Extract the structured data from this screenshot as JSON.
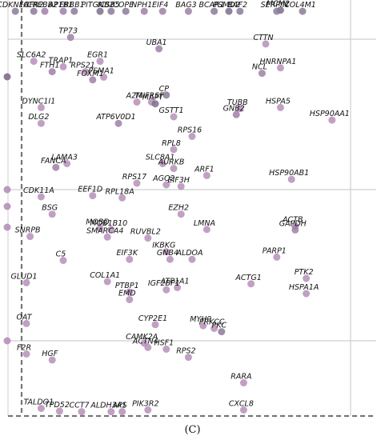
{
  "panel_label": "(C)",
  "chart_data": {
    "type": "scatter",
    "grid": true,
    "grid_color": "#cfcfcf",
    "dashed_line_color": "#777777",
    "point_colors": [
      "#7d6d8c",
      "#8c7a99",
      "#a07fa8",
      "#b68fba",
      "#c7a7c9",
      "#d7bbd6"
    ],
    "points": [
      {
        "label": "CDKN1A",
        "x": 0.02,
        "y": 0.994,
        "shade": 1
      },
      {
        "label": "FGFR2",
        "x": 0.07,
        "y": 0.994,
        "shade": 1
      },
      {
        "label": "AP1B1",
        "x": 0.15,
        "y": 0.994,
        "shade": 2
      },
      {
        "label": "CREBB2",
        "x": 0.1,
        "y": 0.994,
        "shade": 2
      },
      {
        "label": "ERBB1",
        "x": 0.18,
        "y": 0.994,
        "shade": 1
      },
      {
        "label": "PITGNB2",
        "x": 0.25,
        "y": 0.994,
        "shade": 0
      },
      {
        "label": "ICS65",
        "x": 0.28,
        "y": 0.994,
        "shade": 1
      },
      {
        "label": "COPE",
        "x": 0.32,
        "y": 0.994,
        "shade": 1
      },
      {
        "label": "NPH1",
        "x": 0.37,
        "y": 0.994,
        "shade": 2
      },
      {
        "label": "EIF4",
        "x": 0.42,
        "y": 0.994,
        "shade": 2
      },
      {
        "label": "BAG3",
        "x": 0.49,
        "y": 0.994,
        "shade": 2
      },
      {
        "label": "BCAR1",
        "x": 0.56,
        "y": 0.994,
        "shade": 1
      },
      {
        "label": "PSMD2",
        "x": 0.6,
        "y": 0.994,
        "shade": 0
      },
      {
        "label": "BAF2",
        "x": 0.63,
        "y": 0.994,
        "shade": 1
      },
      {
        "label": "MCM2",
        "x": 0.74,
        "y": 0.996,
        "shade": 0
      },
      {
        "label": "SERPIN",
        "x": 0.73,
        "y": 0.994,
        "shade": 1
      },
      {
        "label": "COL4M1",
        "x": 0.8,
        "y": 0.994,
        "shade": 1
      },
      {
        "label": "TP73",
        "x": 0.17,
        "y": 0.946,
        "shade": 2
      },
      {
        "label": "CTTN",
        "x": 0.7,
        "y": 0.934,
        "shade": 3
      },
      {
        "label": "UBA1",
        "x": 0.41,
        "y": 0.925,
        "shade": 2
      },
      {
        "label": "SLC6A2",
        "x": 0.07,
        "y": 0.902,
        "shade": 3
      },
      {
        "label": "EGR1",
        "x": 0.25,
        "y": 0.902,
        "shade": 3
      },
      {
        "label": "TRAP1",
        "x": 0.15,
        "y": 0.892,
        "shade": 3
      },
      {
        "label": "HNRNPA1",
        "x": 0.74,
        "y": 0.89,
        "shade": 3
      },
      {
        "label": "FTH1",
        "x": 0.12,
        "y": 0.883,
        "shade": 2
      },
      {
        "label": "RPS21",
        "x": 0.21,
        "y": 0.883,
        "shade": 3
      },
      {
        "label": "NCL",
        "x": 0.69,
        "y": 0.88,
        "shade": 2
      },
      {
        "label": "PSMA1",
        "x": 0.26,
        "y": 0.873,
        "shade": 3
      },
      {
        "label": "FOXM1",
        "x": 0.23,
        "y": 0.868,
        "shade": 2
      },
      {
        "label": "CP",
        "x": 0.43,
        "y": 0.84,
        "shade": 1
      },
      {
        "label": "A2M",
        "x": 0.35,
        "y": 0.827,
        "shade": 3
      },
      {
        "label": "TNFRSF",
        "x": 0.39,
        "y": 0.827,
        "shade": 3
      },
      {
        "label": "MAPT",
        "x": 0.4,
        "y": 0.824,
        "shade": 0
      },
      {
        "label": "DYNC1I1",
        "x": 0.09,
        "y": 0.817,
        "shade": 3
      },
      {
        "label": "TUBB",
        "x": 0.63,
        "y": 0.815,
        "shade": 3
      },
      {
        "label": "HSPA5",
        "x": 0.74,
        "y": 0.817,
        "shade": 3
      },
      {
        "label": "GNB2",
        "x": 0.62,
        "y": 0.804,
        "shade": 2
      },
      {
        "label": "GSTT1",
        "x": 0.45,
        "y": 0.8,
        "shade": 3
      },
      {
        "label": "HSP90AA1",
        "x": 0.88,
        "y": 0.794,
        "shade": 3
      },
      {
        "label": "DLG2",
        "x": 0.09,
        "y": 0.788,
        "shade": 3
      },
      {
        "label": "ATP6V0D1",
        "x": 0.3,
        "y": 0.788,
        "shade": 2
      },
      {
        "label": "RPS16",
        "x": 0.5,
        "y": 0.764,
        "shade": 3
      },
      {
        "label": "RPL8",
        "x": 0.45,
        "y": 0.74,
        "shade": 3
      },
      {
        "label": "LAMA3",
        "x": 0.16,
        "y": 0.714,
        "shade": 3
      },
      {
        "label": "SLC8A1",
        "x": 0.42,
        "y": 0.714,
        "shade": 3
      },
      {
        "label": "FANCA",
        "x": 0.13,
        "y": 0.707,
        "shade": 2
      },
      {
        "label": "AURKB",
        "x": 0.45,
        "y": 0.705,
        "shade": 3
      },
      {
        "label": "ARF1",
        "x": 0.54,
        "y": 0.692,
        "shade": 3
      },
      {
        "label": "HSP90AB1",
        "x": 0.77,
        "y": 0.685,
        "shade": 3
      },
      {
        "label": "RPS17",
        "x": 0.35,
        "y": 0.678,
        "shade": 3
      },
      {
        "label": "AGO2",
        "x": 0.43,
        "y": 0.675,
        "shade": 3
      },
      {
        "label": "EIF3H",
        "x": 0.47,
        "y": 0.672,
        "shade": 3
      },
      {
        "label": "CDK11A",
        "x": 0.09,
        "y": 0.653,
        "shade": 3
      },
      {
        "label": "EEF1D",
        "x": 0.23,
        "y": 0.655,
        "shade": 3
      },
      {
        "label": "RPL18A",
        "x": 0.31,
        "y": 0.651,
        "shade": 3
      },
      {
        "label": "BSG",
        "x": 0.12,
        "y": 0.621,
        "shade": 3
      },
      {
        "label": "EZH2",
        "x": 0.47,
        "y": 0.621,
        "shade": 3
      },
      {
        "label": "MOBD",
        "x": 0.25,
        "y": 0.595,
        "shade": 3
      },
      {
        "label": "MOB1B10",
        "x": 0.28,
        "y": 0.593,
        "shade": 3
      },
      {
        "label": "LMNA",
        "x": 0.54,
        "y": 0.593,
        "shade": 3
      },
      {
        "label": "ACTB",
        "x": 0.78,
        "y": 0.599,
        "shade": 2
      },
      {
        "label": "GAPDH",
        "x": 0.78,
        "y": 0.592,
        "shade": 2
      },
      {
        "label": "SNRPB",
        "x": 0.06,
        "y": 0.58,
        "shade": 3
      },
      {
        "label": "SMARCA4",
        "x": 0.27,
        "y": 0.579,
        "shade": 3
      },
      {
        "label": "RUVBL2",
        "x": 0.38,
        "y": 0.577,
        "shade": 3
      },
      {
        "label": "IKBKG",
        "x": 0.43,
        "y": 0.552,
        "shade": 3
      },
      {
        "label": "PARP1",
        "x": 0.73,
        "y": 0.542,
        "shade": 3
      },
      {
        "label": "C5",
        "x": 0.15,
        "y": 0.536,
        "shade": 3
      },
      {
        "label": "EIF3K",
        "x": 0.33,
        "y": 0.538,
        "shade": 3
      },
      {
        "label": "GNB4",
        "x": 0.44,
        "y": 0.538,
        "shade": 3
      },
      {
        "label": "ALDOA",
        "x": 0.5,
        "y": 0.538,
        "shade": 3
      },
      {
        "label": "PTK2",
        "x": 0.81,
        "y": 0.503,
        "shade": 3
      },
      {
        "label": "GLUD1",
        "x": 0.05,
        "y": 0.495,
        "shade": 3
      },
      {
        "label": "COL1A1",
        "x": 0.27,
        "y": 0.497,
        "shade": 3
      },
      {
        "label": "ACTG1",
        "x": 0.66,
        "y": 0.493,
        "shade": 3
      },
      {
        "label": "ATP1A1",
        "x": 0.46,
        "y": 0.486,
        "shade": 3
      },
      {
        "label": "IGF2BP1",
        "x": 0.43,
        "y": 0.482,
        "shade": 3
      },
      {
        "label": "HSPA1A",
        "x": 0.81,
        "y": 0.475,
        "shade": 3
      },
      {
        "label": "PTBP1",
        "x": 0.33,
        "y": 0.478,
        "shade": 3
      },
      {
        "label": "EMD",
        "x": 0.33,
        "y": 0.464,
        "shade": 3
      },
      {
        "label": "OAT",
        "x": 0.05,
        "y": 0.42,
        "shade": 3
      },
      {
        "label": "CYP2E1",
        "x": 0.4,
        "y": 0.418,
        "shade": 3
      },
      {
        "label": "MYH9",
        "x": 0.53,
        "y": 0.416,
        "shade": 3
      },
      {
        "label": "PRKCC",
        "x": 0.56,
        "y": 0.411,
        "shade": 3
      },
      {
        "label": "PKC",
        "x": 0.58,
        "y": 0.405,
        "shade": 1
      },
      {
        "label": "CAMK2A",
        "x": 0.37,
        "y": 0.384,
        "shade": 3
      },
      {
        "label": "ACTN4",
        "x": 0.38,
        "y": 0.376,
        "shade": 3
      },
      {
        "label": "HSF1",
        "x": 0.43,
        "y": 0.373,
        "shade": 3
      },
      {
        "label": "F2R",
        "x": 0.05,
        "y": 0.364,
        "shade": 3
      },
      {
        "label": "HGF",
        "x": 0.12,
        "y": 0.353,
        "shade": 3
      },
      {
        "label": "RPS2",
        "x": 0.49,
        "y": 0.358,
        "shade": 3
      },
      {
        "label": "RARA",
        "x": 0.64,
        "y": 0.311,
        "shade": 3
      },
      {
        "label": "TALDO1",
        "x": 0.09,
        "y": 0.264,
        "shade": 3
      },
      {
        "label": "TPD52",
        "x": 0.14,
        "y": 0.259,
        "shade": 3
      },
      {
        "label": "CCT7",
        "x": 0.2,
        "y": 0.258,
        "shade": 3
      },
      {
        "label": "ALDH3A1",
        "x": 0.28,
        "y": 0.258,
        "shade": 3
      },
      {
        "label": "APS",
        "x": 0.31,
        "y": 0.258,
        "shade": 3
      },
      {
        "label": "PIK3R2",
        "x": 0.38,
        "y": 0.261,
        "shade": 3
      },
      {
        "label": "CXCL8",
        "x": 0.64,
        "y": 0.261,
        "shade": 3
      }
    ]
  }
}
